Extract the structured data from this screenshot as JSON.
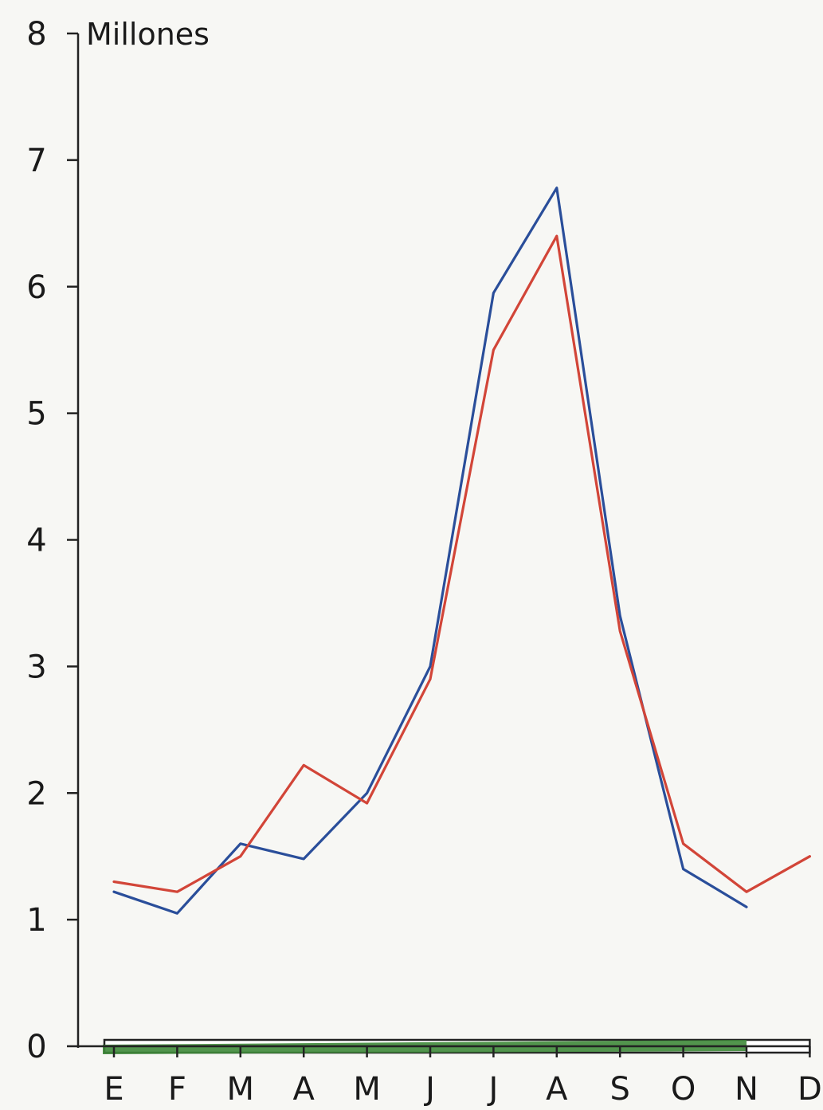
{
  "chart_data": {
    "type": "line",
    "title": "",
    "unit_label": "Millones",
    "xlabel": "",
    "ylabel": "",
    "categories": [
      "E",
      "F",
      "M",
      "A",
      "M",
      "J",
      "J",
      "A",
      "S",
      "O",
      "N",
      "D"
    ],
    "y_ticks": [
      "0",
      "1",
      "2",
      "3",
      "4",
      "5",
      "6",
      "7",
      "8"
    ],
    "ylim": [
      0,
      8
    ],
    "grid": false,
    "legend": "none",
    "series": [
      {
        "color": "#2a4e9a",
        "values": [
          1.22,
          1.05,
          1.6,
          1.48,
          2.0,
          3.0,
          5.95,
          6.78,
          3.4,
          1.4,
          1.1,
          null
        ]
      },
      {
        "color": "#d24538",
        "values": [
          1.3,
          1.22,
          1.5,
          2.22,
          1.92,
          2.9,
          5.5,
          6.4,
          3.28,
          1.6,
          1.22,
          1.5
        ]
      }
    ],
    "bottom_bar": {
      "fill_color": "#3f8a3a",
      "outline_color": "#222",
      "months_filled": 11
    }
  }
}
